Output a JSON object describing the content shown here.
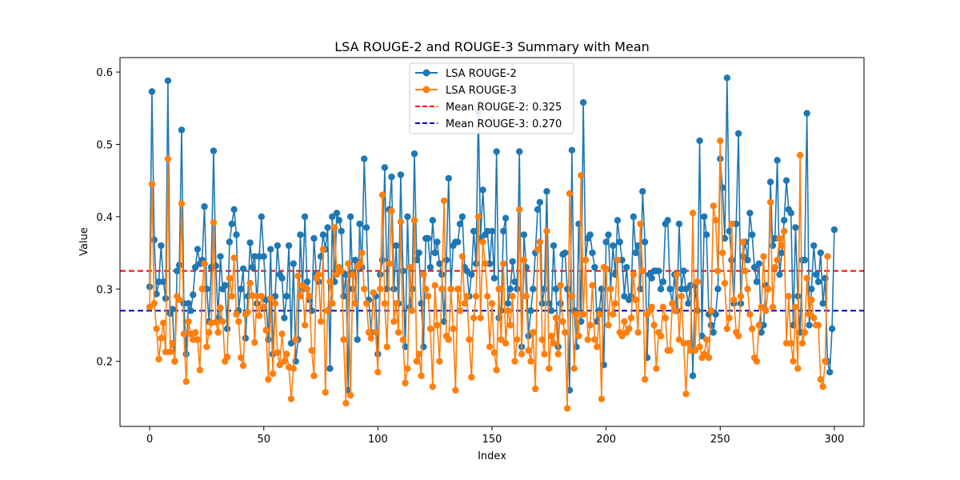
{
  "chart_data": {
    "type": "line",
    "title": "LSA ROUGE-2 and ROUGE-3 Summary with Mean",
    "xlabel": "Index",
    "ylabel": "Value",
    "xlim": [
      -13,
      313
    ],
    "ylim": [
      0.11,
      0.62
    ],
    "x_ticks": [
      0,
      50,
      100,
      150,
      200,
      250,
      300
    ],
    "y_ticks": [
      0.2,
      0.3,
      0.4,
      0.5,
      0.6
    ],
    "x_tick_labels": [
      "0",
      "50",
      "100",
      "150",
      "200",
      "250",
      "300"
    ],
    "y_tick_labels": [
      "0.2",
      "0.3",
      "0.4",
      "0.5",
      "0.6"
    ],
    "grid": false,
    "legend_position": "upper-center",
    "colors": {
      "rouge2": "#1f77b4",
      "rouge3": "#ff7f0e",
      "mean2": "#ff0000",
      "mean3": "#0000cc"
    },
    "mean_lines": [
      {
        "name": "Mean ROUGE-2: 0.325",
        "value": 0.325
      },
      {
        "name": "Mean ROUGE-3: 0.270",
        "value": 0.27
      }
    ],
    "series": [
      {
        "name": "LSA ROUGE-2",
        "values": [
          0.303,
          0.573,
          0.368,
          0.293,
          0.31,
          0.36,
          0.31,
          0.287,
          0.588,
          0.266,
          0.272,
          0.2,
          0.325,
          0.333,
          0.52,
          0.28,
          0.21,
          0.28,
          0.27,
          0.292,
          0.33,
          0.355,
          0.335,
          0.34,
          0.414,
          0.3,
          0.255,
          0.33,
          0.491,
          0.332,
          0.26,
          0.345,
          0.3,
          0.305,
          0.245,
          0.365,
          0.39,
          0.41,
          0.375,
          0.27,
          0.3,
          0.328,
          0.232,
          0.29,
          0.364,
          0.33,
          0.345,
          0.28,
          0.345,
          0.4,
          0.345,
          0.285,
          0.23,
          0.355,
          0.21,
          0.29,
          0.36,
          0.32,
          0.315,
          0.26,
          0.29,
          0.36,
          0.225,
          0.335,
          0.2,
          0.23,
          0.375,
          0.3,
          0.4,
          0.31,
          0.285,
          0.27,
          0.37,
          0.32,
          0.31,
          0.345,
          0.375,
          0.355,
          0.385,
          0.19,
          0.4,
          0.31,
          0.405,
          0.395,
          0.38,
          0.29,
          0.32,
          0.16,
          0.4,
          0.3,
          0.34,
          0.23,
          0.39,
          0.33,
          0.48,
          0.385,
          0.285,
          0.24,
          0.295,
          0.29,
          0.21,
          0.32,
          0.34,
          0.468,
          0.3,
          0.41,
          0.455,
          0.3,
          0.36,
          0.28,
          0.458,
          0.325,
          0.22,
          0.4,
          0.275,
          0.3,
          0.487,
          0.34,
          0.35,
          0.28,
          0.22,
          0.37,
          0.37,
          0.33,
          0.395,
          0.35,
          0.365,
          0.335,
          0.32,
          0.255,
          0.34,
          0.453,
          0.3,
          0.36,
          0.365,
          0.365,
          0.39,
          0.4,
          0.33,
          0.325,
          0.29,
          0.32,
          0.38,
          0.335,
          0.545,
          0.37,
          0.437,
          0.375,
          0.38,
          0.335,
          0.38,
          0.315,
          0.49,
          0.26,
          0.27,
          0.38,
          0.398,
          0.28,
          0.3,
          0.338,
          0.31,
          0.3,
          0.49,
          0.22,
          0.375,
          0.33,
          0.235,
          0.27,
          0.3,
          0.35,
          0.41,
          0.42,
          0.28,
          0.3,
          0.435,
          0.28,
          0.27,
          0.36,
          0.3,
          0.22,
          0.28,
          0.348,
          0.35,
          0.3,
          0.16,
          0.492,
          0.27,
          0.22,
          0.39,
          0.255,
          0.558,
          0.34,
          0.37,
          0.375,
          0.35,
          0.33,
          0.255,
          0.27,
          0.3,
          0.195,
          0.365,
          0.375,
          0.3,
          0.36,
          0.32,
          0.395,
          0.365,
          0.34,
          0.29,
          0.33,
          0.285,
          0.29,
          0.4,
          0.35,
          0.36,
          0.3,
          0.435,
          0.365,
          0.205,
          0.32,
          0.315,
          0.325,
          0.325,
          0.325,
          0.3,
          0.31,
          0.39,
          0.395,
          0.3,
          0.28,
          0.32,
          0.27,
          0.39,
          0.3,
          0.325,
          0.3,
          0.28,
          0.305,
          0.18,
          0.305,
          0.27,
          0.505,
          0.235,
          0.4,
          0.375,
          0.265,
          0.25,
          0.24,
          0.265,
          0.3,
          0.48,
          0.44,
          0.37,
          0.592,
          0.38,
          0.34,
          0.28,
          0.39,
          0.515,
          0.28,
          0.345,
          0.365,
          0.34,
          0.405,
          0.375,
          0.33,
          0.31,
          0.335,
          0.24,
          0.25,
          0.305,
          0.3,
          0.448,
          0.36,
          0.37,
          0.478,
          0.32,
          0.35,
          0.395,
          0.45,
          0.41,
          0.405,
          0.25,
          0.385,
          0.29,
          0.24,
          0.34,
          0.34,
          0.543,
          0.25,
          0.3,
          0.36,
          0.32,
          0.31,
          0.35,
          0.28,
          0.315,
          0.2,
          0.185,
          0.245,
          0.382
        ]
      },
      {
        "name": "LSA ROUGE-3",
        "values": [
          0.275,
          0.445,
          0.28,
          0.245,
          0.203,
          0.232,
          0.253,
          0.213,
          0.48,
          0.213,
          0.225,
          0.2,
          0.29,
          0.285,
          0.418,
          0.238,
          0.172,
          0.255,
          0.238,
          0.23,
          0.24,
          0.23,
          0.188,
          0.3,
          0.335,
          0.22,
          0.24,
          0.253,
          0.392,
          0.254,
          0.24,
          0.274,
          0.255,
          0.2,
          0.206,
          0.315,
          0.29,
          0.343,
          0.265,
          0.255,
          0.205,
          0.194,
          0.265,
          0.268,
          0.308,
          0.291,
          0.226,
          0.29,
          0.263,
          0.29,
          0.275,
          0.243,
          0.175,
          0.287,
          0.183,
          0.28,
          0.212,
          0.195,
          0.238,
          0.2,
          0.21,
          0.192,
          0.148,
          0.19,
          0.23,
          0.318,
          0.29,
          0.305,
          0.25,
          0.3,
          0.29,
          0.215,
          0.18,
          0.315,
          0.32,
          0.255,
          0.355,
          0.157,
          0.27,
          0.31,
          0.28,
          0.385,
          0.32,
          0.33,
          0.325,
          0.23,
          0.142,
          0.335,
          0.153,
          0.32,
          0.28,
          0.33,
          0.335,
          0.35,
          0.3,
          0.28,
          0.24,
          0.232,
          0.295,
          0.24,
          0.185,
          0.3,
          0.43,
          0.28,
          0.22,
          0.335,
          0.408,
          0.255,
          0.28,
          0.24,
          0.393,
          0.23,
          0.17,
          0.19,
          0.33,
          0.27,
          0.395,
          0.2,
          0.21,
          0.18,
          0.32,
          0.3,
          0.29,
          0.245,
          0.165,
          0.305,
          0.25,
          0.2,
          0.3,
          0.422,
          0.235,
          0.23,
          0.3,
          0.245,
          0.16,
          0.3,
          0.27,
          0.345,
          0.28,
          0.29,
          0.23,
          0.178,
          0.26,
          0.29,
          0.4,
          0.26,
          0.365,
          0.335,
          0.29,
          0.22,
          0.28,
          0.212,
          0.188,
          0.3,
          0.23,
          0.335,
          0.225,
          0.27,
          0.25,
          0.29,
          0.2,
          0.23,
          0.41,
          0.21,
          0.34,
          0.29,
          0.215,
          0.2,
          0.24,
          0.162,
          0.355,
          0.365,
          0.23,
          0.21,
          0.38,
          0.19,
          0.235,
          0.225,
          0.26,
          0.21,
          0.305,
          0.255,
          0.24,
          0.135,
          0.432,
          0.29,
          0.19,
          0.265,
          0.235,
          0.457,
          0.265,
          0.34,
          0.23,
          0.25,
          0.305,
          0.23,
          0.22,
          0.265,
          0.148,
          0.33,
          0.328,
          0.25,
          0.3,
          0.265,
          0.28,
          0.34,
          0.24,
          0.235,
          0.255,
          0.24,
          0.245,
          0.26,
          0.32,
          0.285,
          0.24,
          0.39,
          0.325,
          0.175,
          0.265,
          0.27,
          0.275,
          0.25,
          0.19,
          0.24,
          0.235,
          0.275,
          0.26,
          0.215,
          0.215,
          0.28,
          0.27,
          0.32,
          0.23,
          0.29,
          0.225,
          0.155,
          0.225,
          0.215,
          0.405,
          0.215,
          0.31,
          0.22,
          0.205,
          0.21,
          0.23,
          0.205,
          0.27,
          0.415,
          0.395,
          0.325,
          0.505,
          0.35,
          0.308,
          0.245,
          0.26,
          0.39,
          0.285,
          0.24,
          0.235,
          0.29,
          0.365,
          0.325,
          0.3,
          0.265,
          0.245,
          0.205,
          0.2,
          0.25,
          0.275,
          0.345,
          0.27,
          0.3,
          0.42,
          0.275,
          0.33,
          0.34,
          0.37,
          0.36,
          0.38,
          0.225,
          0.29,
          0.225,
          0.2,
          0.275,
          0.19,
          0.485,
          0.225,
          0.24,
          0.315,
          0.265,
          0.285,
          0.26,
          0.25,
          0.25,
          0.175,
          0.165,
          0.2,
          0.345
        ]
      }
    ]
  }
}
